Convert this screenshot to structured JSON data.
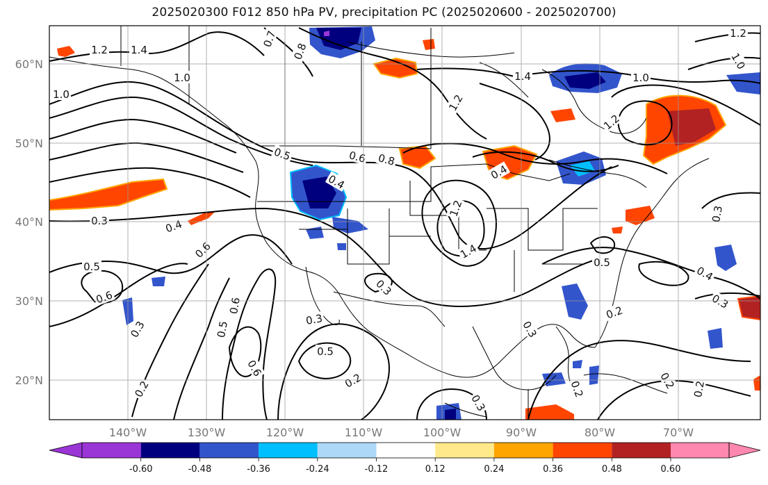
{
  "title": "2025020300 F012 850 hPa PV, precipitation PC (2025020600 - 2025020700)",
  "lat_labels": [
    "60°N",
    "50°N",
    "40°N",
    "30°N",
    "20°N"
  ],
  "lon_labels": [
    "140°W",
    "130°W",
    "120°W",
    "110°W",
    "100°W",
    "90°W",
    "80°W",
    "70°W"
  ],
  "colorbar": {
    "ticks": [
      "-0.60",
      "-0.48",
      "-0.36",
      "-0.24",
      "-0.12",
      "0.12",
      "0.24",
      "0.36",
      "0.48",
      "0.60"
    ],
    "colors": [
      "#9a35d6",
      "#00007f",
      "#3355cc",
      "#00bfff",
      "#add8f8",
      "#ffffff",
      "#ffe98a",
      "#ffa500",
      "#ff4500",
      "#b22222",
      "#ff88b0"
    ]
  },
  "contour_labels": [
    "1.2",
    "1.4",
    "1.0",
    "1.0",
    "0.7",
    "0.8",
    "1.4",
    "1.0",
    "1.2",
    "1.0",
    "1.2",
    "0.5",
    "0.6",
    "0.8",
    "0.4",
    "0.3",
    "0.4",
    "0.6",
    "0.5",
    "0.6",
    "0.6",
    "0.5",
    "0.3",
    "0.3",
    "0.5",
    "0.6",
    "0.2",
    "0.2",
    "0.3",
    "1.4",
    "1.2",
    "0.4",
    "0.3",
    "0.5",
    "0.4",
    "0.3",
    "0.2",
    "0.3",
    "0.2",
    "0.2",
    "0.3",
    "1.2",
    "0.2"
  ]
}
